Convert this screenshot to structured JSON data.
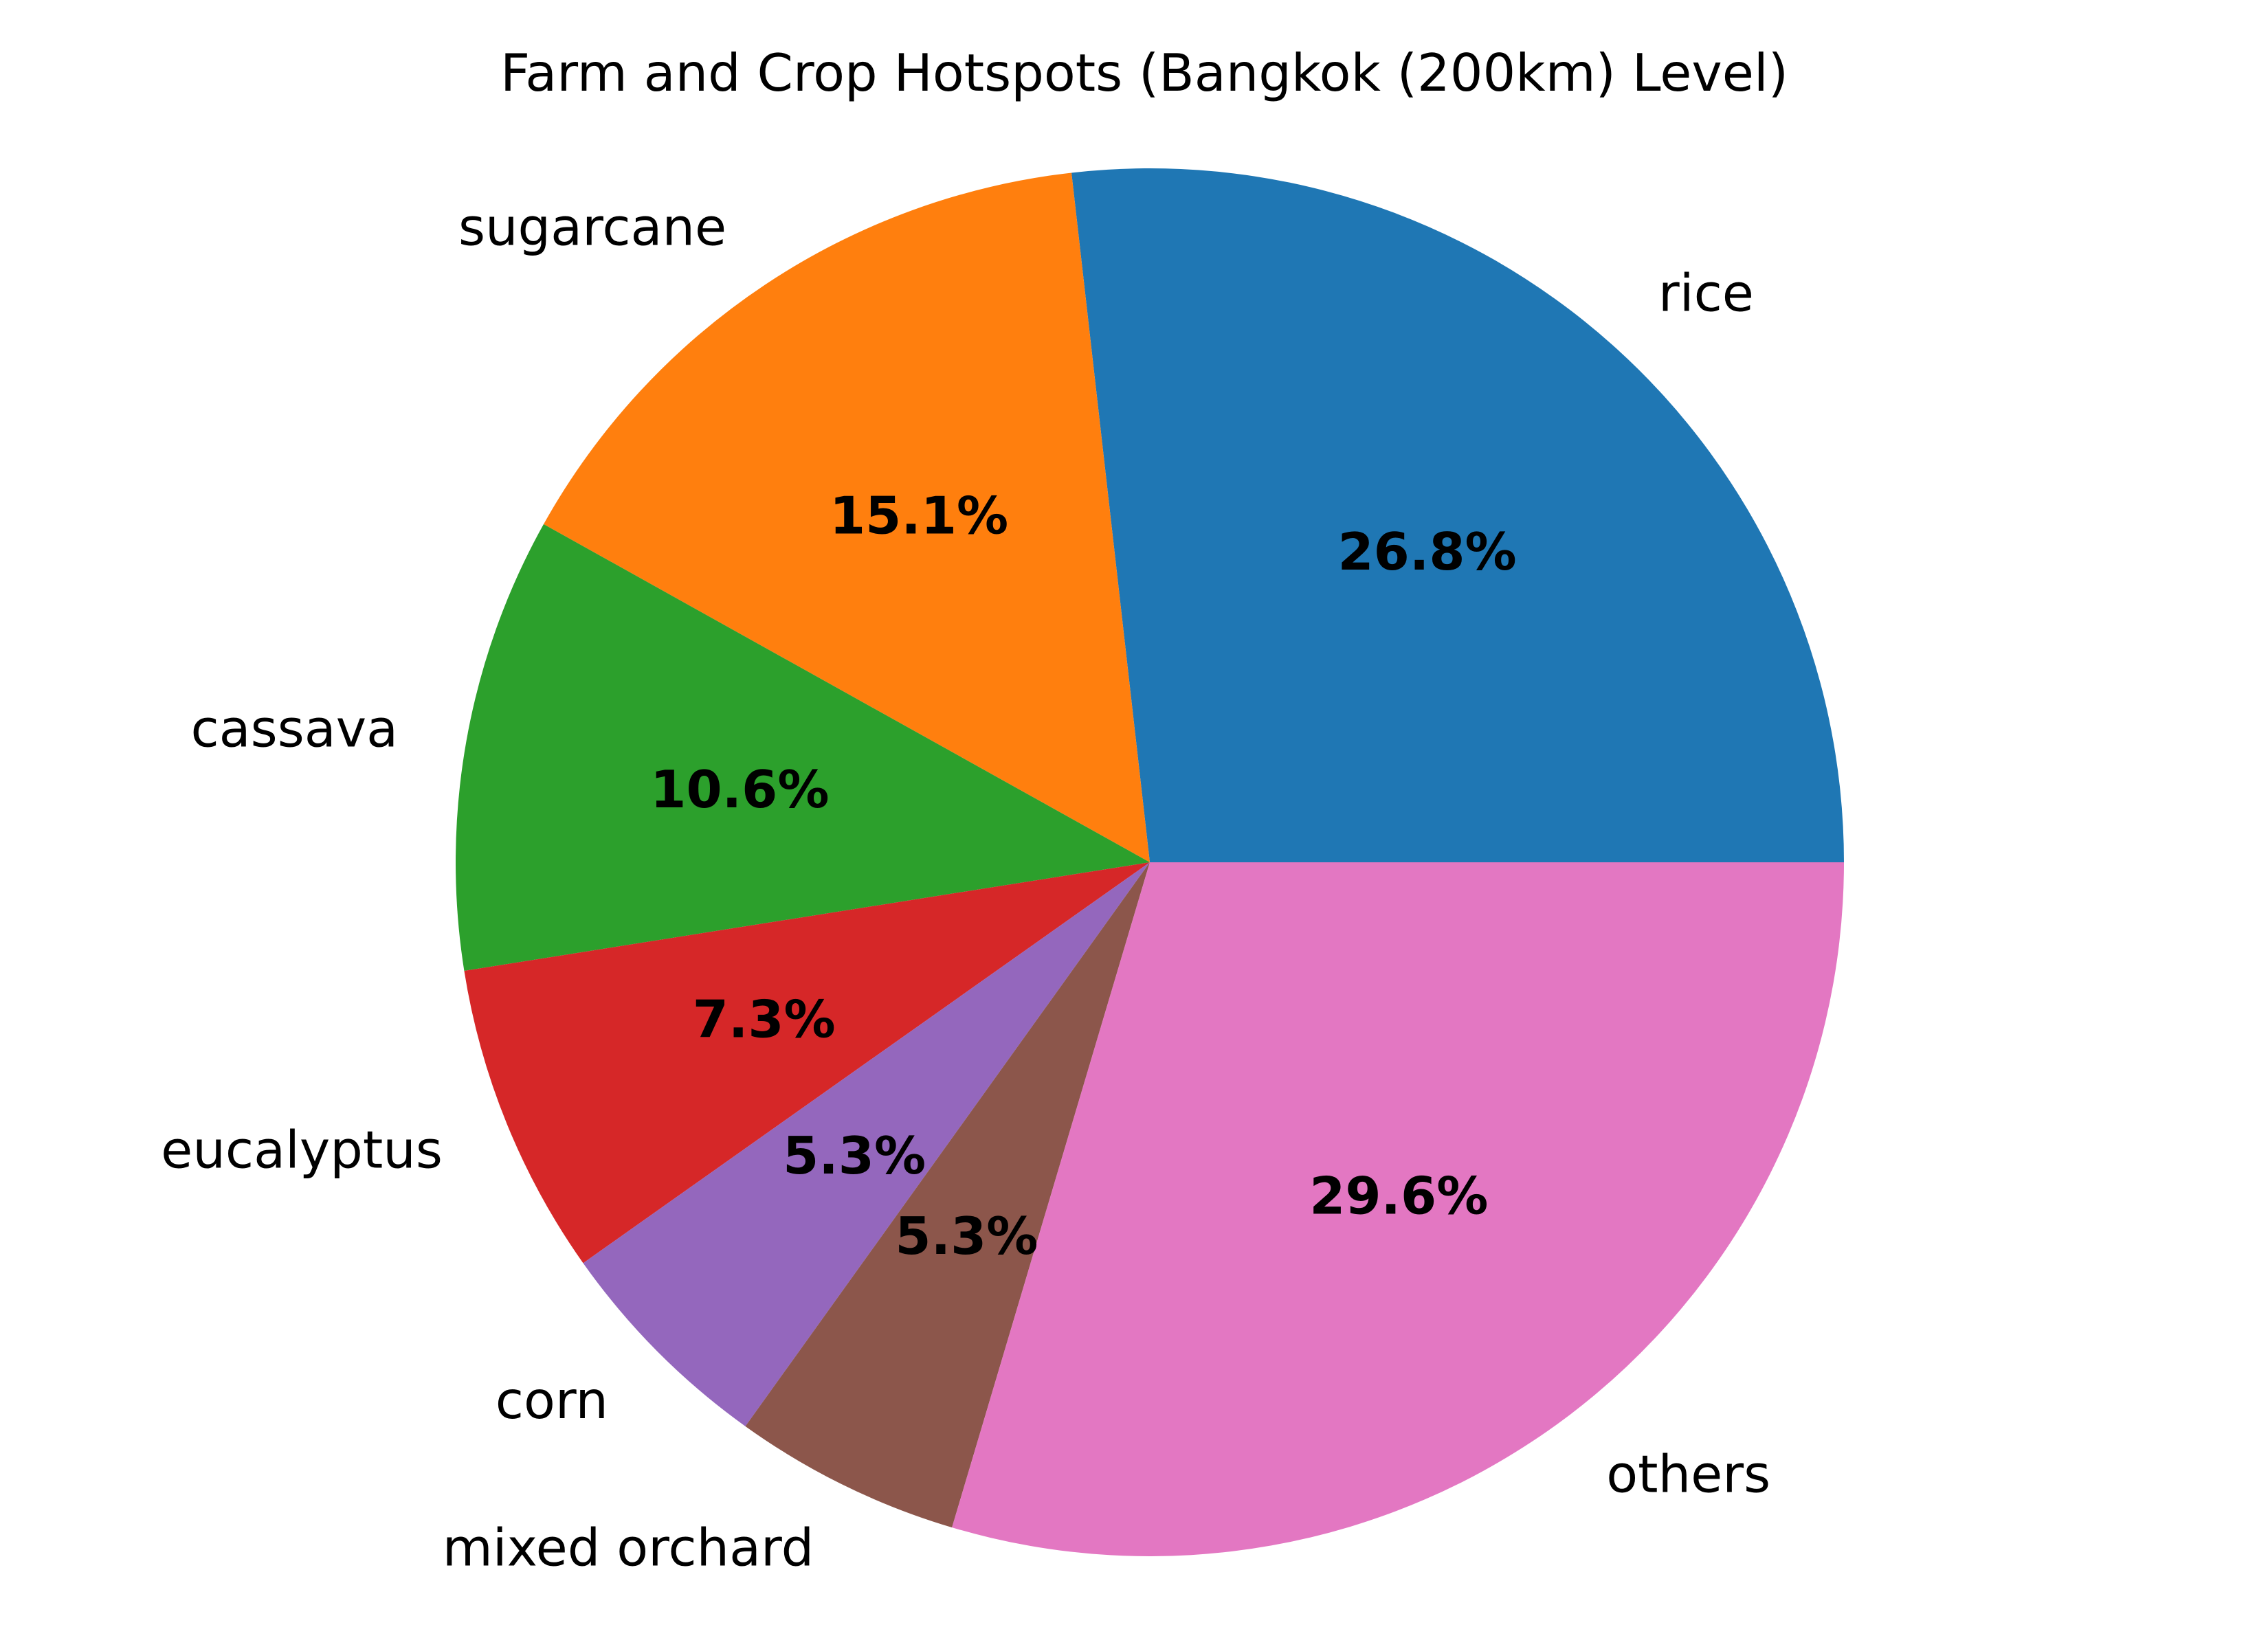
{
  "chart_data": {
    "type": "pie",
    "title": "Farm and Crop Hotspots (Bangkok (200km) Level)",
    "start_angle_deg": 0,
    "direction": "counterclockwise",
    "slices": [
      {
        "label": "rice",
        "value": 26.8,
        "pct_label": "26.8%",
        "color": "#1f77b4"
      },
      {
        "label": "sugarcane",
        "value": 15.1,
        "pct_label": "15.1%",
        "color": "#ff7f0e"
      },
      {
        "label": "cassava",
        "value": 10.6,
        "pct_label": "10.6%",
        "color": "#2ca02c"
      },
      {
        "label": "eucalyptus",
        "value": 7.3,
        "pct_label": "7.3%",
        "color": "#d62728"
      },
      {
        "label": "corn",
        "value": 5.3,
        "pct_label": "5.3%",
        "color": "#9467bd"
      },
      {
        "label": "mixed orchard",
        "value": 5.3,
        "pct_label": "5.3%",
        "color": "#8c564b"
      },
      {
        "label": "others",
        "value": 29.6,
        "pct_label": "29.6%",
        "color": "#e377c2"
      }
    ]
  }
}
